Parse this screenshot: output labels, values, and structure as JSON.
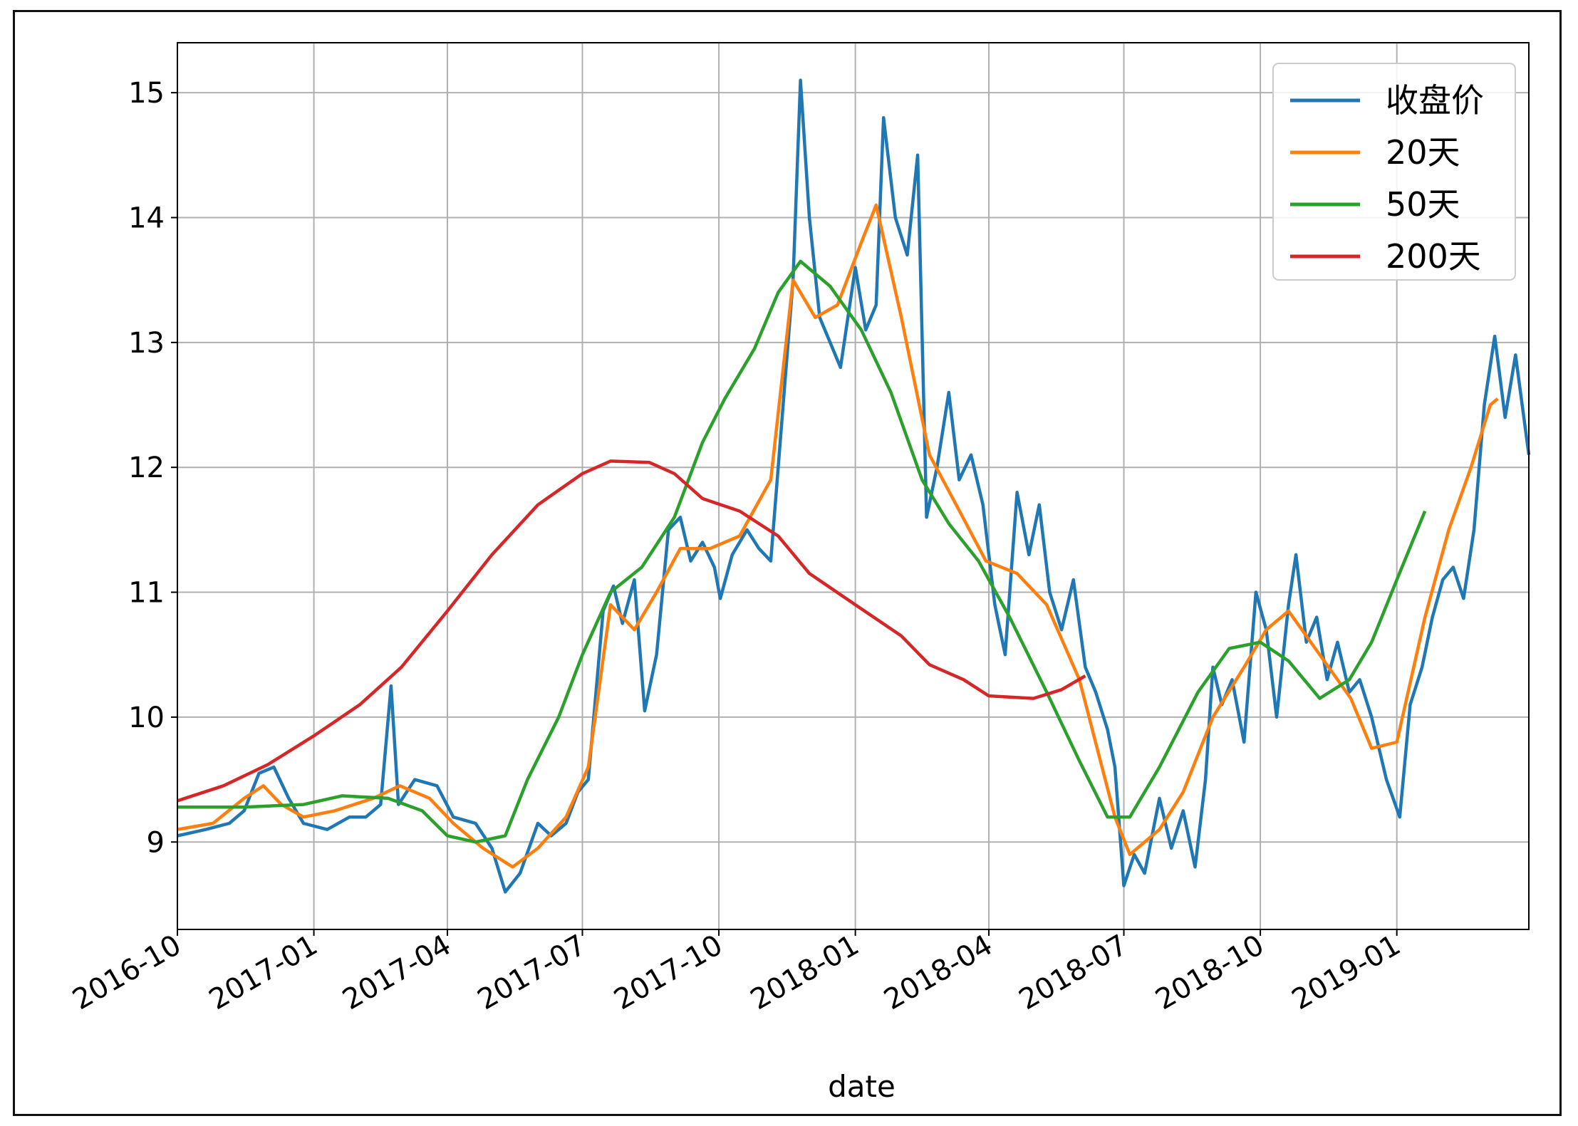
{
  "chart_data": {
    "type": "line",
    "title": "",
    "xlabel": "date",
    "ylabel": "",
    "x_range": [
      "2016-10-01",
      "2019-03-31"
    ],
    "ylim": [
      8.3,
      15.4
    ],
    "grid": true,
    "legend_position": "top-right",
    "x_ticks": [
      "2016-10",
      "2017-01",
      "2017-04",
      "2017-07",
      "2017-10",
      "2018-01",
      "2018-04",
      "2018-07",
      "2018-10",
      "2019-01"
    ],
    "y_ticks": [
      9,
      10,
      11,
      12,
      13,
      14,
      15
    ],
    "series": [
      {
        "name": "收盘价",
        "color": "#1f77b4",
        "points": [
          [
            "2016-10-01",
            9.05
          ],
          [
            "2016-10-20",
            9.1
          ],
          [
            "2016-11-05",
            9.15
          ],
          [
            "2016-11-15",
            9.25
          ],
          [
            "2016-11-25",
            9.55
          ],
          [
            "2016-12-05",
            9.6
          ],
          [
            "2016-12-15",
            9.35
          ],
          [
            "2016-12-25",
            9.15
          ],
          [
            "2017-01-10",
            9.1
          ],
          [
            "2017-01-25",
            9.2
          ],
          [
            "2017-02-05",
            9.2
          ],
          [
            "2017-02-15",
            9.3
          ],
          [
            "2017-02-22",
            10.25
          ],
          [
            "2017-02-27",
            9.3
          ],
          [
            "2017-03-10",
            9.5
          ],
          [
            "2017-03-25",
            9.45
          ],
          [
            "2017-04-05",
            9.2
          ],
          [
            "2017-04-20",
            9.15
          ],
          [
            "2017-05-01",
            8.95
          ],
          [
            "2017-05-10",
            8.6
          ],
          [
            "2017-05-20",
            8.75
          ],
          [
            "2017-06-01",
            9.15
          ],
          [
            "2017-06-10",
            9.05
          ],
          [
            "2017-06-20",
            9.15
          ],
          [
            "2017-06-28",
            9.4
          ],
          [
            "2017-07-05",
            9.5
          ],
          [
            "2017-07-15",
            10.85
          ],
          [
            "2017-07-22",
            11.05
          ],
          [
            "2017-07-28",
            10.75
          ],
          [
            "2017-08-05",
            11.1
          ],
          [
            "2017-08-12",
            10.05
          ],
          [
            "2017-08-20",
            10.5
          ],
          [
            "2017-08-28",
            11.5
          ],
          [
            "2017-09-05",
            11.6
          ],
          [
            "2017-09-12",
            11.25
          ],
          [
            "2017-09-20",
            11.4
          ],
          [
            "2017-09-28",
            11.2
          ],
          [
            "2017-10-02",
            10.95
          ],
          [
            "2017-10-10",
            11.3
          ],
          [
            "2017-10-20",
            11.5
          ],
          [
            "2017-10-28",
            11.35
          ],
          [
            "2017-11-05",
            11.25
          ],
          [
            "2017-11-12",
            12.3
          ],
          [
            "2017-11-20",
            13.5
          ],
          [
            "2017-11-25",
            15.1
          ],
          [
            "2017-12-01",
            14.0
          ],
          [
            "2017-12-08",
            13.2
          ],
          [
            "2017-12-15",
            13.0
          ],
          [
            "2017-12-22",
            12.8
          ],
          [
            "2018-01-01",
            13.6
          ],
          [
            "2018-01-08",
            13.1
          ],
          [
            "2018-01-15",
            13.3
          ],
          [
            "2018-01-20",
            14.8
          ],
          [
            "2018-01-28",
            14.0
          ],
          [
            "2018-02-05",
            13.7
          ],
          [
            "2018-02-12",
            14.5
          ],
          [
            "2018-02-18",
            11.6
          ],
          [
            "2018-02-25",
            12.0
          ],
          [
            "2018-03-05",
            12.6
          ],
          [
            "2018-03-12",
            11.9
          ],
          [
            "2018-03-20",
            12.1
          ],
          [
            "2018-03-28",
            11.7
          ],
          [
            "2018-04-05",
            10.9
          ],
          [
            "2018-04-12",
            10.5
          ],
          [
            "2018-04-20",
            11.8
          ],
          [
            "2018-04-28",
            11.3
          ],
          [
            "2018-05-05",
            11.7
          ],
          [
            "2018-05-12",
            11.0
          ],
          [
            "2018-05-20",
            10.7
          ],
          [
            "2018-05-28",
            11.1
          ],
          [
            "2018-06-05",
            10.4
          ],
          [
            "2018-06-12",
            10.2
          ],
          [
            "2018-06-20",
            9.9
          ],
          [
            "2018-06-25",
            9.6
          ],
          [
            "2018-07-01",
            8.65
          ],
          [
            "2018-07-08",
            8.9
          ],
          [
            "2018-07-15",
            8.75
          ],
          [
            "2018-07-25",
            9.35
          ],
          [
            "2018-08-02",
            8.95
          ],
          [
            "2018-08-10",
            9.25
          ],
          [
            "2018-08-18",
            8.8
          ],
          [
            "2018-08-25",
            9.5
          ],
          [
            "2018-08-30",
            10.4
          ],
          [
            "2018-09-05",
            10.1
          ],
          [
            "2018-09-12",
            10.3
          ],
          [
            "2018-09-20",
            9.8
          ],
          [
            "2018-09-28",
            11.0
          ],
          [
            "2018-10-05",
            10.7
          ],
          [
            "2018-10-12",
            10.0
          ],
          [
            "2018-10-20",
            10.9
          ],
          [
            "2018-10-25",
            11.3
          ],
          [
            "2018-11-01",
            10.6
          ],
          [
            "2018-11-08",
            10.8
          ],
          [
            "2018-11-15",
            10.3
          ],
          [
            "2018-11-22",
            10.6
          ],
          [
            "2018-11-30",
            10.2
          ],
          [
            "2018-12-07",
            10.3
          ],
          [
            "2018-12-15",
            10.0
          ],
          [
            "2018-12-25",
            9.5
          ],
          [
            "2019-01-03",
            9.2
          ],
          [
            "2019-01-10",
            10.1
          ],
          [
            "2019-01-18",
            10.4
          ],
          [
            "2019-01-25",
            10.8
          ],
          [
            "2019-02-01",
            11.1
          ],
          [
            "2019-02-08",
            11.2
          ],
          [
            "2019-02-15",
            10.95
          ],
          [
            "2019-02-22",
            11.5
          ],
          [
            "2019-03-01",
            12.5
          ],
          [
            "2019-03-08",
            13.05
          ],
          [
            "2019-03-15",
            12.4
          ],
          [
            "2019-03-22",
            12.9
          ],
          [
            "2019-03-31",
            12.1
          ]
        ]
      },
      {
        "name": "20天",
        "color": "#ff7f0e",
        "points": [
          [
            "2016-10-01",
            9.1
          ],
          [
            "2016-10-25",
            9.15
          ],
          [
            "2016-11-15",
            9.35
          ],
          [
            "2016-11-28",
            9.45
          ],
          [
            "2016-12-10",
            9.3
          ],
          [
            "2016-12-25",
            9.2
          ],
          [
            "2017-01-15",
            9.25
          ],
          [
            "2017-02-10",
            9.35
          ],
          [
            "2017-02-28",
            9.45
          ],
          [
            "2017-03-20",
            9.35
          ],
          [
            "2017-04-05",
            9.15
          ],
          [
            "2017-04-25",
            8.95
          ],
          [
            "2017-05-15",
            8.8
          ],
          [
            "2017-06-01",
            8.95
          ],
          [
            "2017-06-20",
            9.2
          ],
          [
            "2017-07-05",
            9.6
          ],
          [
            "2017-07-20",
            10.9
          ],
          [
            "2017-08-05",
            10.7
          ],
          [
            "2017-08-20",
            11.0
          ],
          [
            "2017-09-05",
            11.35
          ],
          [
            "2017-09-25",
            11.35
          ],
          [
            "2017-10-15",
            11.45
          ],
          [
            "2017-11-05",
            11.9
          ],
          [
            "2017-11-20",
            13.5
          ],
          [
            "2017-12-05",
            13.2
          ],
          [
            "2017-12-20",
            13.3
          ],
          [
            "2018-01-05",
            13.8
          ],
          [
            "2018-01-15",
            14.1
          ],
          [
            "2018-02-01",
            13.2
          ],
          [
            "2018-02-20",
            12.1
          ],
          [
            "2018-03-10",
            11.7
          ],
          [
            "2018-03-30",
            11.25
          ],
          [
            "2018-04-20",
            11.15
          ],
          [
            "2018-05-10",
            10.9
          ],
          [
            "2018-06-01",
            10.3
          ],
          [
            "2018-06-25",
            9.2
          ],
          [
            "2018-07-05",
            8.9
          ],
          [
            "2018-07-25",
            9.1
          ],
          [
            "2018-08-10",
            9.4
          ],
          [
            "2018-08-30",
            10.0
          ],
          [
            "2018-09-20",
            10.4
          ],
          [
            "2018-10-05",
            10.7
          ],
          [
            "2018-10-20",
            10.85
          ],
          [
            "2018-11-10",
            10.5
          ],
          [
            "2018-12-01",
            10.15
          ],
          [
            "2018-12-15",
            9.75
          ],
          [
            "2019-01-01",
            9.8
          ],
          [
            "2019-01-20",
            10.8
          ],
          [
            "2019-02-05",
            11.5
          ],
          [
            "2019-02-20",
            12.0
          ],
          [
            "2019-03-05",
            12.5
          ],
          [
            "2019-03-10",
            12.55
          ]
        ]
      },
      {
        "name": "50天",
        "color": "#2ca02c",
        "points": [
          [
            "2016-10-01",
            9.28
          ],
          [
            "2016-11-15",
            9.28
          ],
          [
            "2016-12-25",
            9.3
          ],
          [
            "2017-01-20",
            9.37
          ],
          [
            "2017-02-20",
            9.35
          ],
          [
            "2017-03-15",
            9.25
          ],
          [
            "2017-04-01",
            9.05
          ],
          [
            "2017-04-20",
            9.0
          ],
          [
            "2017-05-10",
            9.05
          ],
          [
            "2017-05-25",
            9.5
          ],
          [
            "2017-06-15",
            10.0
          ],
          [
            "2017-07-01",
            10.5
          ],
          [
            "2017-07-20",
            11.0
          ],
          [
            "2017-08-10",
            11.2
          ],
          [
            "2017-09-01",
            11.6
          ],
          [
            "2017-09-20",
            12.2
          ],
          [
            "2017-10-05",
            12.55
          ],
          [
            "2017-10-25",
            12.95
          ],
          [
            "2017-11-10",
            13.4
          ],
          [
            "2017-11-25",
            13.65
          ],
          [
            "2017-12-15",
            13.45
          ],
          [
            "2018-01-05",
            13.1
          ],
          [
            "2018-01-25",
            12.6
          ],
          [
            "2018-02-15",
            11.9
          ],
          [
            "2018-03-05",
            11.55
          ],
          [
            "2018-03-25",
            11.25
          ],
          [
            "2018-04-15",
            10.8
          ],
          [
            "2018-05-10",
            10.2
          ],
          [
            "2018-06-01",
            9.65
          ],
          [
            "2018-06-20",
            9.2
          ],
          [
            "2018-07-05",
            9.2
          ],
          [
            "2018-07-25",
            9.6
          ],
          [
            "2018-08-20",
            10.2
          ],
          [
            "2018-09-10",
            10.55
          ],
          [
            "2018-10-01",
            10.6
          ],
          [
            "2018-10-20",
            10.45
          ],
          [
            "2018-11-10",
            10.15
          ],
          [
            "2018-11-30",
            10.3
          ],
          [
            "2018-12-15",
            10.6
          ],
          [
            "2019-01-01",
            11.1
          ],
          [
            "2019-01-20",
            11.65
          ]
        ]
      },
      {
        "name": "200天",
        "color": "#d62728",
        "points": [
          [
            "2016-10-01",
            9.33
          ],
          [
            "2016-11-01",
            9.45
          ],
          [
            "2016-12-01",
            9.62
          ],
          [
            "2017-01-01",
            9.85
          ],
          [
            "2017-02-01",
            10.1
          ],
          [
            "2017-03-01",
            10.4
          ],
          [
            "2017-04-01",
            10.85
          ],
          [
            "2017-05-01",
            11.3
          ],
          [
            "2017-06-01",
            11.7
          ],
          [
            "2017-07-01",
            11.95
          ],
          [
            "2017-07-20",
            12.05
          ],
          [
            "2017-08-15",
            12.04
          ],
          [
            "2017-09-01",
            11.95
          ],
          [
            "2017-09-20",
            11.75
          ],
          [
            "2017-10-15",
            11.65
          ],
          [
            "2017-11-10",
            11.45
          ],
          [
            "2017-12-01",
            11.15
          ],
          [
            "2018-01-01",
            10.9
          ],
          [
            "2018-02-01",
            10.65
          ],
          [
            "2018-02-20",
            10.42
          ],
          [
            "2018-03-15",
            10.3
          ],
          [
            "2018-04-01",
            10.17
          ],
          [
            "2018-05-01",
            10.15
          ],
          [
            "2018-05-20",
            10.22
          ],
          [
            "2018-06-05",
            10.33
          ]
        ]
      }
    ]
  }
}
